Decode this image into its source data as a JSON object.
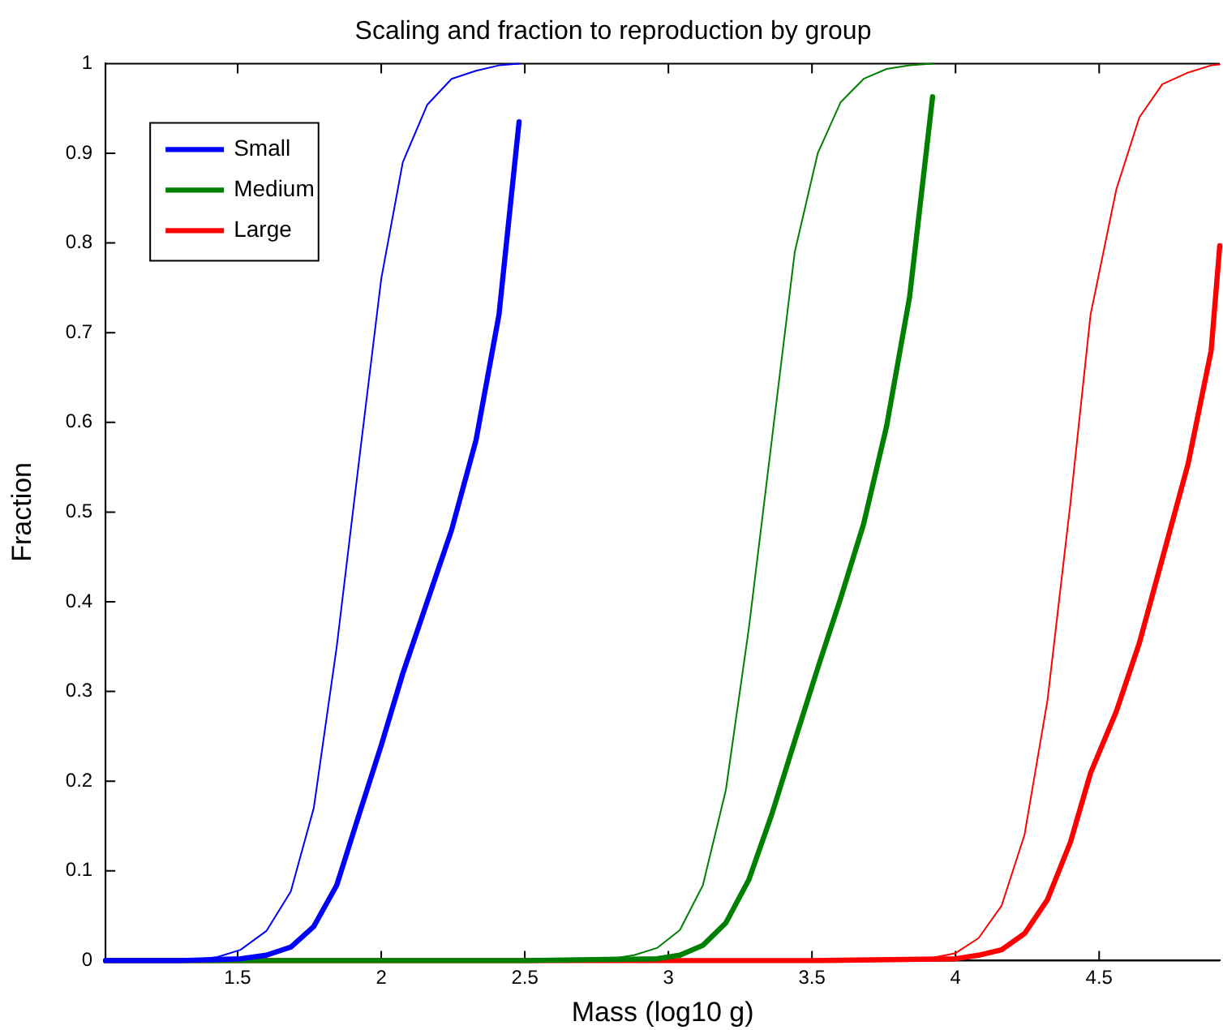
{
  "chart_data": {
    "type": "line",
    "title": "Scaling and fraction to reproduction by group",
    "xlabel": "Mass (log10 g)",
    "ylabel": "Fraction",
    "xlim": [
      1.04,
      4.92
    ],
    "xticks": [
      1.5,
      2,
      2.5,
      3,
      3.5,
      4,
      4.5
    ],
    "ylim": [
      0,
      1
    ],
    "yticks": [
      0,
      0.1,
      0.2,
      0.3,
      0.4,
      0.5,
      0.6,
      0.7,
      0.8,
      0.9,
      1
    ],
    "grid": false,
    "legend": "top left",
    "marker": "none",
    "line_style": "solid",
    "series": [
      {
        "color": "#0000ff",
        "x": [
          1.04,
          1.2,
          1.35,
          1.43,
          1.51,
          1.6,
          1.685,
          1.765,
          1.845,
          1.92,
          2.0,
          2.075,
          2.16,
          2.245,
          2.33,
          2.41,
          2.48
        ],
        "values": [
          0,
          0,
          0.001,
          0.004,
          0.012,
          0.033,
          0.077,
          0.17,
          0.35,
          0.55,
          0.76,
          0.89,
          0.954,
          0.983,
          0.992,
          0.998,
          1.0
        ]
      },
      {
        "name": "Small",
        "color": "#0000ff",
        "x": [
          1.04,
          1.3,
          1.51,
          1.6,
          1.685,
          1.765,
          1.845,
          1.92,
          2.0,
          2.075,
          2.16,
          2.245,
          2.33,
          2.41,
          2.48
        ],
        "values": [
          0,
          0,
          0.002,
          0.006,
          0.015,
          0.038,
          0.084,
          0.16,
          0.24,
          0.32,
          0.4,
          0.48,
          0.58,
          0.72,
          0.935
        ]
      },
      {
        "color": "#008000",
        "x": [
          1.04,
          2.5,
          2.8,
          2.88,
          2.96,
          3.04,
          3.12,
          3.2,
          3.28,
          3.36,
          3.44,
          3.52,
          3.6,
          3.68,
          3.76,
          3.84,
          3.92
        ],
        "values": [
          0,
          0,
          0.002,
          0.006,
          0.014,
          0.034,
          0.084,
          0.19,
          0.37,
          0.58,
          0.79,
          0.9,
          0.957,
          0.983,
          0.994,
          0.998,
          1.0
        ]
      },
      {
        "name": "Medium",
        "color": "#008000",
        "x": [
          1.04,
          2.5,
          2.96,
          3.04,
          3.12,
          3.2,
          3.28,
          3.36,
          3.44,
          3.52,
          3.6,
          3.68,
          3.76,
          3.84,
          3.92
        ],
        "values": [
          0,
          0,
          0.002,
          0.006,
          0.017,
          0.042,
          0.09,
          0.163,
          0.245,
          0.326,
          0.404,
          0.487,
          0.596,
          0.74,
          0.963
        ]
      },
      {
        "color": "#ff0000",
        "x": [
          1.04,
          3.5,
          3.9,
          3.998,
          4.08,
          4.16,
          4.24,
          4.32,
          4.4,
          4.47,
          4.56,
          4.64,
          4.72,
          4.81,
          4.89,
          4.92
        ],
        "values": [
          0,
          0,
          0.002,
          0.008,
          0.025,
          0.061,
          0.14,
          0.29,
          0.51,
          0.72,
          0.86,
          0.94,
          0.977,
          0.99,
          0.998,
          0.999
        ]
      },
      {
        "name": "Large",
        "color": "#ff0000",
        "x": [
          1.04,
          3.5,
          4.0,
          4.08,
          4.16,
          4.24,
          4.32,
          4.4,
          4.47,
          4.56,
          4.64,
          4.72,
          4.81,
          4.89,
          4.92
        ],
        "values": [
          0,
          0,
          0.002,
          0.006,
          0.012,
          0.03,
          0.068,
          0.132,
          0.209,
          0.278,
          0.354,
          0.448,
          0.554,
          0.68,
          0.797
        ]
      }
    ]
  }
}
